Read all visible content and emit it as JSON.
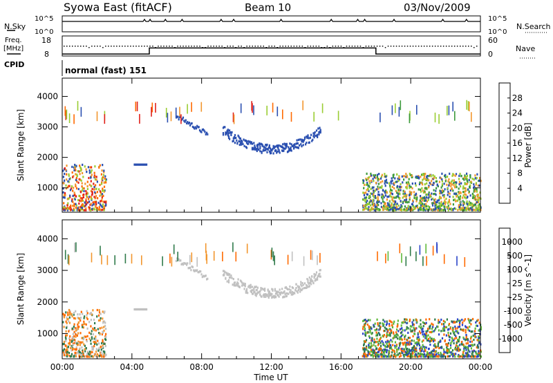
{
  "header": {
    "title": "Syowa East (fitACF)",
    "beam": "Beam 10",
    "date": "03/Nov/2009"
  },
  "sky_panel": {
    "left_label": "N.Sky",
    "right_label": "N.Search",
    "left_ticks": [
      "10^5",
      "10^0"
    ],
    "right_ticks": [
      "10^5",
      "10^0"
    ]
  },
  "freq_panel": {
    "left_label_1": "Freq.",
    "left_label_2": "[MHz]",
    "left_ticks": [
      "18",
      "8"
    ],
    "right_label": "Nave",
    "right_ticks": [
      "60",
      "0"
    ],
    "freq_steps": [
      {
        "start_h": 0,
        "end_h": 5,
        "level": 9
      },
      {
        "start_h": 5,
        "end_h": 18,
        "level": 12
      },
      {
        "start_h": 18,
        "end_h": 24,
        "level": 9
      }
    ]
  },
  "cpid": {
    "label": "CPID",
    "program": "normal (fast) 151"
  },
  "chart_data": [
    {
      "type": "heatmap",
      "title": "Power",
      "ylabel": "Slant Range [km]",
      "xlim_hours": [
        0,
        24
      ],
      "ylim_km": [
        200,
        4600
      ],
      "y_ticks": [
        {
          "v": 1000,
          "label": "1000"
        },
        {
          "v": 2000,
          "label": "2000"
        },
        {
          "v": 3000,
          "label": "3000"
        },
        {
          "v": 4000,
          "label": "4000"
        }
      ],
      "colorbar": {
        "label": "Power [dB]",
        "range": [
          0,
          32
        ],
        "ticks": [
          {
            "v": 4,
            "label": "4"
          },
          {
            "v": 8,
            "label": "8"
          },
          {
            "v": 12,
            "label": "12"
          },
          {
            "v": 16,
            "label": "16"
          },
          {
            "v": 20,
            "label": "20"
          },
          {
            "v": 24,
            "label": "24"
          },
          {
            "v": 28,
            "label": "28"
          }
        ],
        "colors": [
          "#1414ff",
          "#2a5ad6",
          "#2f7a62",
          "#3c9a3c",
          "#9acd32",
          "#f2c81e",
          "#f2962d",
          "#ff6a00",
          "#e0201a"
        ]
      },
      "features": [
        {
          "kind": "arc",
          "from_h": 9.2,
          "to_h": 14.8,
          "base_km": 2300,
          "top_km": 3000,
          "color": "#2a4fb0"
        },
        {
          "kind": "band",
          "from_h": 6.5,
          "to_h": 8.3,
          "start_km": 3400,
          "end_km": 2800,
          "color": "#2a4fb0"
        },
        {
          "kind": "cluster",
          "from_h": 0,
          "to_h": 2.5,
          "min_km": 300,
          "max_km": 1800,
          "colors": [
            "#ff6a00",
            "#f2962d",
            "#e0201a",
            "#9acd32",
            "#2a4fb0"
          ]
        },
        {
          "kind": "cluster",
          "from_h": 17.2,
          "to_h": 24,
          "min_km": 300,
          "max_km": 1500,
          "colors": [
            "#2a4fb0",
            "#3c9a3c",
            "#9acd32",
            "#f2962d"
          ]
        },
        {
          "kind": "segment",
          "from_h": 4.1,
          "to_h": 4.8,
          "range_km": 1800,
          "color": "#2a4fb0"
        }
      ]
    },
    {
      "type": "heatmap",
      "title": "Velocity",
      "ylabel": "Slant Range [km]",
      "xlabel": "Time UT",
      "xlim_hours": [
        0,
        24
      ],
      "ylim_km": [
        200,
        4600
      ],
      "x_ticks": [
        {
          "h": 0,
          "label": "00:00"
        },
        {
          "h": 4,
          "label": "04:00"
        },
        {
          "h": 8,
          "label": "08:00"
        },
        {
          "h": 12,
          "label": "12:00"
        },
        {
          "h": 16,
          "label": "16:00"
        },
        {
          "h": 20,
          "label": "20:00"
        },
        {
          "h": 24,
          "label": "00:00"
        }
      ],
      "y_ticks": [
        {
          "v": 1000,
          "label": "1000"
        },
        {
          "v": 2000,
          "label": "2000"
        },
        {
          "v": 3000,
          "label": "3000"
        },
        {
          "v": 4000,
          "label": "4000"
        }
      ],
      "colorbar": {
        "label": "Velocity [m s^-1]",
        "ticks_top_to_bottom": [
          "1000",
          "500",
          "100",
          "25",
          "-25",
          "-100",
          "-500",
          "-1000"
        ],
        "colors_top_to_bottom": [
          "#2a44c8",
          "#2f6fa0",
          "#2f7a4a",
          "#5fb83a",
          "#c0c0c0",
          "#f2c81e",
          "#f2962d",
          "#ff6a00",
          "#e0201a"
        ]
      },
      "features": [
        {
          "kind": "arc",
          "from_h": 9.2,
          "to_h": 14.8,
          "base_km": 2300,
          "top_km": 3000,
          "color": "#c0c0c0"
        },
        {
          "kind": "band",
          "from_h": 6.5,
          "to_h": 8.3,
          "start_km": 3400,
          "end_km": 2800,
          "color": "#c0c0c0"
        },
        {
          "kind": "cluster",
          "from_h": 0,
          "to_h": 2.5,
          "min_km": 300,
          "max_km": 1800,
          "colors": [
            "#ff6a00",
            "#2f7a4a",
            "#f2962d",
            "#c0c0c0"
          ]
        },
        {
          "kind": "cluster",
          "from_h": 17.2,
          "to_h": 24,
          "min_km": 300,
          "max_km": 1500,
          "colors": [
            "#2f7a4a",
            "#2a44c8",
            "#ff6a00",
            "#5fb83a"
          ]
        },
        {
          "kind": "segment",
          "from_h": 4.1,
          "to_h": 4.8,
          "range_km": 1800,
          "color": "#c0c0c0"
        }
      ]
    }
  ]
}
